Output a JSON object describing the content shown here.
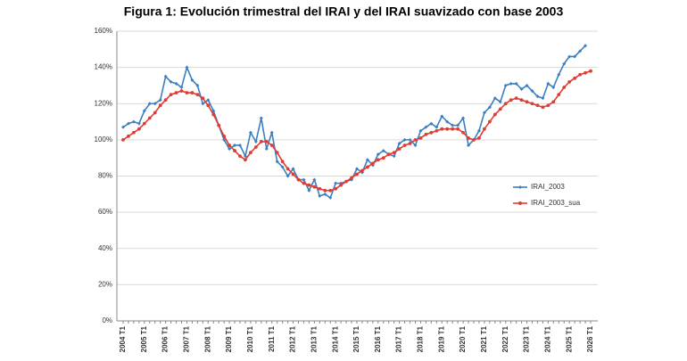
{
  "chart_data": {
    "type": "line",
    "title": "Figura 1: Evolución trimestral del IRAI y del IRAI suavizado con base 2003",
    "categories": [
      "2004 T1",
      null,
      null,
      null,
      "2005 T1",
      null,
      null,
      null,
      "2006 T1",
      null,
      null,
      null,
      "2007 T1",
      null,
      null,
      null,
      "2008 T1",
      null,
      null,
      null,
      "2009 T1",
      null,
      null,
      null,
      "2010 T1",
      null,
      null,
      null,
      "2011 T1",
      null,
      null,
      null,
      "2012 T1",
      null,
      null,
      null,
      "2013 T1",
      null,
      null,
      null,
      "2014 T1",
      null,
      null,
      null,
      "2015 T1",
      null,
      null,
      null,
      "2016 T1",
      null,
      null,
      null,
      "2017 T1",
      null,
      null,
      null,
      "2018 T1",
      null,
      null,
      null,
      "2019 T1",
      null,
      null,
      null,
      "2020 T1",
      null,
      null,
      null,
      "2021 T1",
      null,
      null,
      null,
      "2022 T1",
      null,
      null,
      null,
      "2023 T1",
      null,
      null,
      null,
      "2024 T1",
      null,
      null,
      null,
      "2025 T1",
      null,
      null,
      null,
      "2026 T1"
    ],
    "series": [
      {
        "name": "IRAI_2003",
        "color": "#3a7fc1",
        "marker": "diamond",
        "values": [
          107,
          109,
          110,
          109,
          116,
          120,
          120,
          122,
          135,
          132,
          131,
          129,
          140,
          133,
          130,
          120,
          122,
          116,
          108,
          100,
          95,
          97,
          97,
          91,
          104,
          99,
          112,
          95,
          104,
          88,
          85,
          80,
          84,
          78,
          78,
          72,
          78,
          69,
          70,
          68,
          76,
          76,
          77,
          78,
          84,
          82,
          89,
          86,
          92,
          94,
          92,
          91,
          98,
          100,
          100,
          97,
          105,
          107,
          109,
          107,
          113,
          110,
          108,
          108,
          112,
          97,
          100,
          105,
          115,
          118,
          123,
          121,
          130,
          131,
          131,
          128,
          130,
          127,
          124,
          123,
          131,
          129,
          136,
          142,
          146,
          146,
          149,
          152,
          null
        ]
      },
      {
        "name": "IRAI_2003_sua",
        "color": "#e03c31",
        "marker": "circle",
        "values": [
          100,
          102,
          104,
          106,
          109,
          112,
          115,
          119,
          122,
          125,
          126,
          127,
          126,
          126,
          125,
          123,
          119,
          114,
          108,
          102,
          97,
          94,
          91,
          89,
          93,
          96,
          99,
          99,
          97,
          93,
          88,
          84,
          81,
          78,
          76,
          75,
          74,
          73,
          72,
          72,
          73,
          75,
          77,
          79,
          81,
          83,
          85,
          87,
          89,
          90,
          92,
          93,
          95,
          97,
          98,
          100,
          101,
          103,
          104,
          105,
          106,
          106,
          106,
          106,
          104,
          101,
          100,
          101,
          106,
          110,
          114,
          117,
          120,
          122,
          123,
          122,
          121,
          120,
          119,
          118,
          119,
          121,
          125,
          129,
          132,
          134,
          136,
          137,
          138
        ]
      }
    ],
    "ylim": [
      0,
      160
    ],
    "yticks": [
      {
        "value": 0,
        "label": "0%"
      },
      {
        "value": 20,
        "label": "20%"
      },
      {
        "value": 40,
        "label": "40%"
      },
      {
        "value": 60,
        "label": "60%"
      },
      {
        "value": 80,
        "label": "80%"
      },
      {
        "value": 100,
        "label": "100%"
      },
      {
        "value": 120,
        "label": "120%"
      },
      {
        "value": 140,
        "label": "140%"
      },
      {
        "value": 160,
        "label": "160%"
      }
    ],
    "grid": true,
    "legend": "right"
  }
}
